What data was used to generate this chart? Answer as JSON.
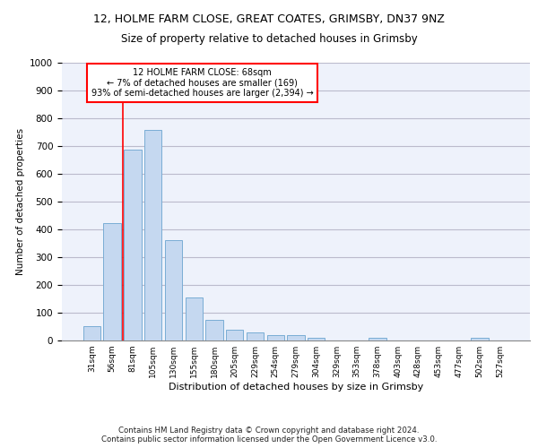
{
  "title1": "12, HOLME FARM CLOSE, GREAT COATES, GRIMSBY, DN37 9NZ",
  "title2": "Size of property relative to detached houses in Grimsby",
  "xlabel": "Distribution of detached houses by size in Grimsby",
  "ylabel": "Number of detached properties",
  "categories": [
    "31sqm",
    "56sqm",
    "81sqm",
    "105sqm",
    "130sqm",
    "155sqm",
    "180sqm",
    "205sqm",
    "229sqm",
    "254sqm",
    "279sqm",
    "304sqm",
    "329sqm",
    "353sqm",
    "378sqm",
    "403sqm",
    "428sqm",
    "453sqm",
    "477sqm",
    "502sqm",
    "527sqm"
  ],
  "values": [
    52,
    422,
    687,
    757,
    362,
    155,
    75,
    40,
    28,
    18,
    18,
    10,
    0,
    0,
    10,
    0,
    0,
    0,
    0,
    10,
    0
  ],
  "bar_color": "#c5d8f0",
  "bar_edge_color": "#7aadd4",
  "vline_color": "red",
  "annotation_text": "12 HOLME FARM CLOSE: 68sqm\n← 7% of detached houses are smaller (169)\n93% of semi-detached houses are larger (2,394) →",
  "annotation_box_color": "white",
  "annotation_box_edge": "red",
  "ylim": [
    0,
    1000
  ],
  "yticks": [
    0,
    100,
    200,
    300,
    400,
    500,
    600,
    700,
    800,
    900,
    1000
  ],
  "footer1": "Contains HM Land Registry data © Crown copyright and database right 2024.",
  "footer2": "Contains public sector information licensed under the Open Government Licence v3.0.",
  "grid_color": "#bbbbcc",
  "bg_color": "#eef2fb",
  "title_fontsize": 9,
  "subtitle_fontsize": 8.5,
  "bar_width": 0.85
}
